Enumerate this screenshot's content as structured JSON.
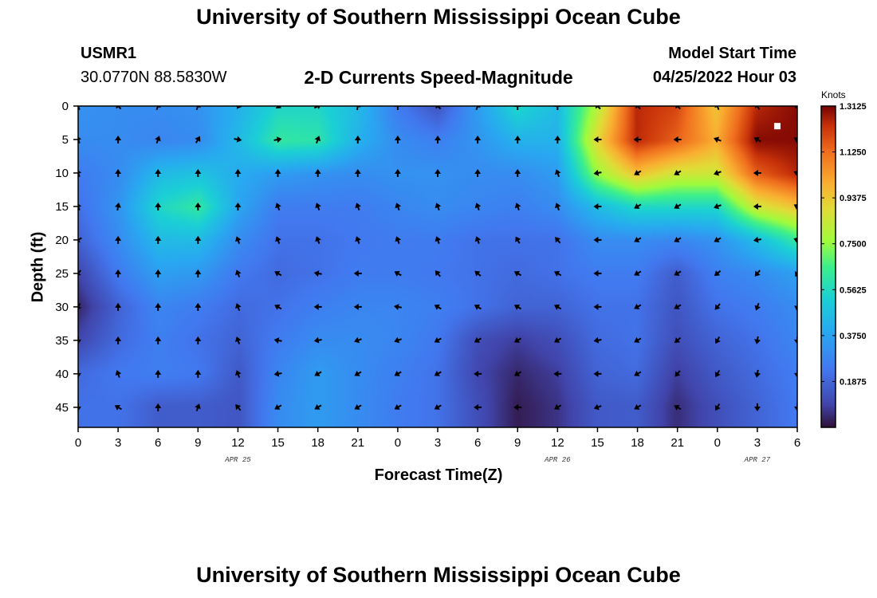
{
  "header": {
    "title": "University of Southern Mississippi Ocean Cube",
    "station": "USMR1",
    "coords": "30.0770N  88.5830W",
    "subtitle": "2-D Currents Speed-Magnitude",
    "model_label": "Model Start Time",
    "model_time": "04/25/2022 Hour 03"
  },
  "footer": {
    "title": "University of Southern Mississippi Ocean Cube"
  },
  "chart_data": {
    "type": "heatmap",
    "xlabel": "Forecast Time(Z)",
    "ylabel": "Depth (ft)",
    "x_ticks": [
      "0",
      "3",
      "6",
      "9",
      "12",
      "15",
      "18",
      "21",
      "0",
      "3",
      "6",
      "9",
      "12",
      "15",
      "18",
      "21",
      "0",
      "3",
      "6"
    ],
    "date_labels": [
      {
        "label": "APR 25",
        "tick_index": 4
      },
      {
        "label": "APR 26",
        "tick_index": 12
      },
      {
        "label": "APR 27",
        "tick_index": 17
      }
    ],
    "y_ticks": [
      0,
      5,
      10,
      15,
      20,
      25,
      30,
      35,
      40,
      45
    ],
    "ylim": [
      0,
      48
    ],
    "y_inverted": true,
    "colorbar": {
      "label": "Knots",
      "ticks": [
        "1.3125",
        "1.1250",
        "0.9375",
        "0.7500",
        "0.5625",
        "0.3750",
        "0.1875"
      ],
      "range": [
        0,
        1.3125
      ]
    },
    "depths": [
      0,
      5,
      10,
      15,
      20,
      25,
      30,
      35,
      40,
      45
    ],
    "speed_knots": [
      [
        0.32,
        0.3,
        0.3,
        0.32,
        0.42,
        0.55,
        0.55,
        0.45,
        0.25,
        0.14,
        0.35,
        0.55,
        0.45,
        0.8,
        1.25,
        1.2,
        0.95,
        1.25,
        1.3
      ],
      [
        0.3,
        0.3,
        0.28,
        0.3,
        0.45,
        0.62,
        0.6,
        0.42,
        0.3,
        0.26,
        0.33,
        0.42,
        0.42,
        0.9,
        1.25,
        1.15,
        1.0,
        1.3,
        1.3
      ],
      [
        0.25,
        0.3,
        0.45,
        0.48,
        0.4,
        0.35,
        0.32,
        0.3,
        0.32,
        0.32,
        0.3,
        0.3,
        0.35,
        0.75,
        0.95,
        0.85,
        0.85,
        1.15,
        1.25
      ],
      [
        0.22,
        0.33,
        0.55,
        0.62,
        0.38,
        0.25,
        0.25,
        0.25,
        0.28,
        0.3,
        0.28,
        0.26,
        0.3,
        0.45,
        0.55,
        0.55,
        0.55,
        0.85,
        0.95
      ],
      [
        0.18,
        0.3,
        0.45,
        0.45,
        0.3,
        0.22,
        0.22,
        0.24,
        0.25,
        0.25,
        0.22,
        0.22,
        0.22,
        0.3,
        0.3,
        0.28,
        0.32,
        0.45,
        0.62
      ],
      [
        0.1,
        0.25,
        0.36,
        0.34,
        0.24,
        0.2,
        0.22,
        0.25,
        0.25,
        0.24,
        0.22,
        0.2,
        0.22,
        0.25,
        0.25,
        0.16,
        0.26,
        0.3,
        0.36
      ],
      [
        0.04,
        0.18,
        0.28,
        0.25,
        0.2,
        0.22,
        0.26,
        0.28,
        0.28,
        0.26,
        0.22,
        0.18,
        0.18,
        0.22,
        0.22,
        0.14,
        0.22,
        0.25,
        0.3
      ],
      [
        0.1,
        0.2,
        0.26,
        0.22,
        0.18,
        0.25,
        0.3,
        0.3,
        0.28,
        0.24,
        0.12,
        0.08,
        0.12,
        0.2,
        0.22,
        0.12,
        0.18,
        0.22,
        0.28
      ],
      [
        0.2,
        0.24,
        0.26,
        0.24,
        0.15,
        0.28,
        0.35,
        0.3,
        0.26,
        0.22,
        0.1,
        0.04,
        0.08,
        0.18,
        0.2,
        0.08,
        0.15,
        0.2,
        0.25
      ],
      [
        0.22,
        0.22,
        0.16,
        0.16,
        0.14,
        0.3,
        0.35,
        0.3,
        0.25,
        0.22,
        0.12,
        0.02,
        0.06,
        0.15,
        0.16,
        0.05,
        0.12,
        0.18,
        0.24
      ]
    ],
    "arrow_dirs_deg": [
      [
        200,
        225,
        160,
        160,
        80,
        60,
        120,
        170,
        180,
        225,
        160,
        180,
        180,
        225,
        225,
        225,
        200,
        210,
        225
      ],
      [
        200,
        180,
        160,
        150,
        80,
        100,
        160,
        180,
        180,
        180,
        180,
        180,
        180,
        270,
        270,
        270,
        250,
        240,
        240
      ],
      [
        200,
        180,
        180,
        180,
        180,
        180,
        180,
        180,
        180,
        180,
        180,
        180,
        200,
        280,
        300,
        300,
        290,
        270,
        250
      ],
      [
        200,
        170,
        180,
        180,
        180,
        200,
        200,
        200,
        200,
        200,
        200,
        200,
        200,
        270,
        300,
        300,
        290,
        270,
        240
      ],
      [
        300,
        180,
        180,
        180,
        200,
        200,
        200,
        200,
        200,
        200,
        200,
        210,
        220,
        270,
        300,
        300,
        300,
        280,
        250
      ],
      [
        320,
        180,
        180,
        180,
        200,
        240,
        260,
        270,
        240,
        220,
        230,
        240,
        240,
        270,
        300,
        300,
        310,
        320,
        330
      ],
      [
        330,
        180,
        180,
        180,
        200,
        240,
        270,
        270,
        260,
        240,
        240,
        240,
        240,
        270,
        300,
        300,
        320,
        340,
        350
      ],
      [
        0,
        180,
        180,
        180,
        200,
        260,
        280,
        290,
        290,
        300,
        300,
        300,
        300,
        280,
        300,
        310,
        330,
        350,
        0
      ],
      [
        0,
        200,
        180,
        180,
        200,
        280,
        300,
        300,
        300,
        300,
        270,
        300,
        270,
        270,
        300,
        320,
        330,
        350,
        0
      ],
      [
        0,
        240,
        180,
        160,
        220,
        300,
        300,
        300,
        300,
        300,
        270,
        270,
        300,
        290,
        300,
        240,
        330,
        0,
        0
      ]
    ],
    "marker": {
      "time_index": 17.5,
      "depth": 3
    }
  }
}
